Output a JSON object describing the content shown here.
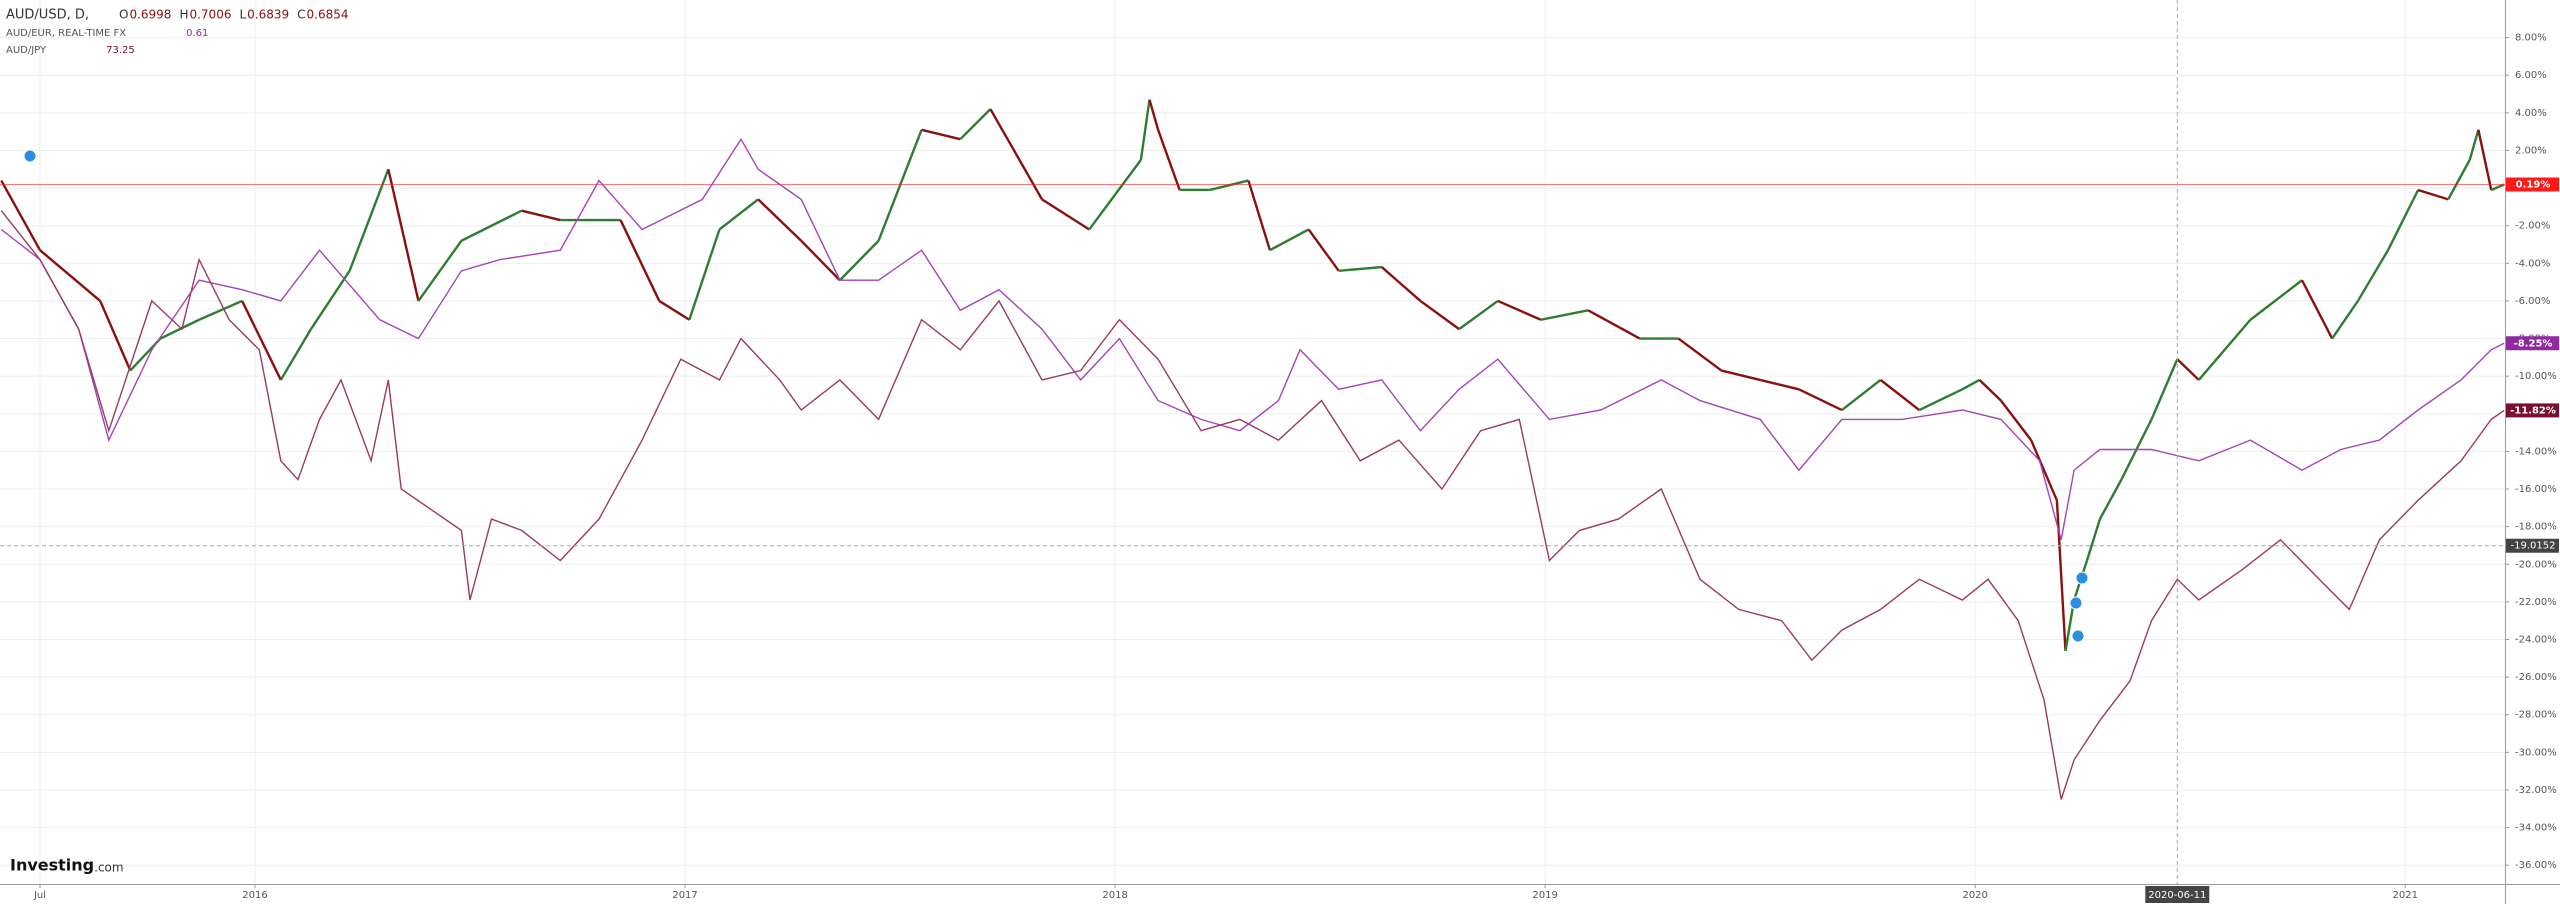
{
  "chart_data": {
    "type": "line",
    "header": {
      "symbol": "AUD/USD, D,",
      "ohlc": [
        {
          "label": "O",
          "value": 0.6998
        },
        {
          "label": "H",
          "value": 0.7006
        },
        {
          "label": "L",
          "value": 0.6839
        },
        {
          "label": "C",
          "value": 0.6854
        }
      ]
    },
    "logo": [
      "Investing",
      ".com"
    ],
    "xlim": [
      2015.407,
      2021.232
    ],
    "xticks": [
      {
        "value": 2015.5,
        "label": "Jul"
      },
      2016,
      2017,
      2018,
      2019,
      2020,
      2021
    ],
    "ylim": [
      -37,
      10
    ],
    "yticks": [
      {
        "value": 8,
        "label": "8.00%"
      },
      {
        "value": 6,
        "label": "6.00%"
      },
      {
        "value": 4,
        "label": "4.00%"
      },
      {
        "value": 2,
        "label": "2.00%"
      },
      {
        "value": 0,
        "label": "0.00%"
      },
      {
        "value": -2,
        "label": "-2.00%"
      },
      {
        "value": -4,
        "label": "-4.00%"
      },
      {
        "value": -6,
        "label": "-6.00%"
      },
      {
        "value": -8,
        "label": "-8.00%"
      },
      {
        "value": -10,
        "label": "-10.00%"
      },
      {
        "value": -12,
        "label": "-12.00%"
      },
      {
        "value": -14,
        "label": "-14.00%"
      },
      {
        "value": -16,
        "label": "-16.00%"
      },
      {
        "value": -18,
        "label": "-18.00%"
      },
      {
        "value": -20,
        "label": "-20.00%"
      },
      {
        "value": -22,
        "label": "-22.00%"
      },
      {
        "value": -24,
        "label": "-24.00%"
      },
      {
        "value": -26,
        "label": "-26.00%"
      },
      {
        "value": -28,
        "label": "-28.00%"
      },
      {
        "value": -30,
        "label": "-30.00%"
      },
      {
        "value": -32,
        "label": "-32.00%"
      },
      {
        "value": -34,
        "label": "-34.00%"
      },
      {
        "value": -36,
        "label": "-36.00%"
      }
    ],
    "grid": true,
    "crosshair": {
      "x": {
        "value": 2020.47,
        "label": "2020-06-11"
      },
      "y": -19.0152
    },
    "series": [
      {
        "name": "AUD/USD",
        "style": "candles",
        "up_color": "#2e7d32",
        "down_color": "#8b1010",
        "end_color": "#ff1a1a",
        "end_label": "0.19%",
        "x": [
          2015.41,
          2015.5,
          2015.64,
          2015.71,
          2015.78,
          2015.87,
          2015.97,
          2016.06,
          2016.13,
          2016.22,
          2016.31,
          2016.38,
          2016.48,
          2016.62,
          2016.71,
          2016.85,
          2016.94,
          2017.01,
          2017.08,
          2017.17,
          2017.27,
          2017.36,
          2017.45,
          2017.55,
          2017.64,
          2017.71,
          2017.83,
          2017.94,
          2018.06,
          2018.08,
          2018.1,
          2018.15,
          2018.22,
          2018.31,
          2018.36,
          2018.45,
          2018.52,
          2018.62,
          2018.71,
          2018.8,
          2018.89,
          2018.99,
          2019.1,
          2019.22,
          2019.31,
          2019.41,
          2019.5,
          2019.59,
          2019.69,
          2019.78,
          2019.87,
          2019.97,
          2020.01,
          2020.06,
          2020.13,
          2020.19,
          2020.21,
          2020.23,
          2020.26,
          2020.29,
          2020.34,
          2020.41,
          2020.47,
          2020.52,
          2020.64,
          2020.76,
          2020.83,
          2020.89,
          2020.96,
          2021.03,
          2021.1,
          2021.15,
          2021.17,
          2021.2,
          2021.23
        ],
        "values": [
          0.4,
          -3.3,
          -6,
          -9.7,
          -8,
          -7,
          -6,
          -10.2,
          -7.5,
          -4.4,
          1,
          -6,
          -2.8,
          -1.2,
          -1.7,
          -1.7,
          -6,
          -7,
          -2.2,
          -0.6,
          -2.8,
          -4.9,
          -2.8,
          3.1,
          2.6,
          4.2,
          -0.6,
          -2.2,
          1.5,
          4.7,
          3.1,
          -0.1,
          -0.1,
          0.4,
          -3.3,
          -2.2,
          -4.4,
          -4.2,
          -6,
          -7.5,
          -6,
          -7,
          -6.5,
          -8,
          -8,
          -9.7,
          -10.2,
          -10.7,
          -11.8,
          -10.2,
          -11.8,
          -10.7,
          -10.2,
          -11.3,
          -13.4,
          -16.6,
          -24.6,
          -21.9,
          -19.8,
          -17.6,
          -15.5,
          -12.3,
          -9.1,
          -10.2,
          -7,
          -4.9,
          -8,
          -6,
          -3.3,
          -0.1,
          -0.6,
          1.5,
          3.1,
          -0.1,
          0.19
        ]
      },
      {
        "name": "AUD/EUR, REAL-TIME FX",
        "legend_value": 0.61,
        "color": "#a544b8",
        "end_color": "#8e2a9e",
        "end_label": "-8.25%",
        "x": [
          2015.41,
          2015.5,
          2015.59,
          2015.66,
          2015.76,
          2015.87,
          2015.97,
          2016.06,
          2016.15,
          2016.29,
          2016.38,
          2016.48,
          2016.57,
          2016.71,
          2016.8,
          2016.9,
          2017.04,
          2017.13,
          2017.17,
          2017.27,
          2017.36,
          2017.45,
          2017.55,
          2017.64,
          2017.73,
          2017.83,
          2017.92,
          2018.01,
          2018.1,
          2018.2,
          2018.29,
          2018.38,
          2018.43,
          2018.52,
          2018.62,
          2018.71,
          2018.8,
          2018.89,
          2019.01,
          2019.13,
          2019.27,
          2019.36,
          2019.5,
          2019.59,
          2019.69,
          2019.83,
          2019.97,
          2020.06,
          2020.15,
          2020.2,
          2020.23,
          2020.29,
          2020.41,
          2020.52,
          2020.64,
          2020.76,
          2020.85,
          2020.94,
          2021.03,
          2021.13,
          2021.2,
          2021.23
        ],
        "values": [
          -2.2,
          -3.8,
          -7.5,
          -13.4,
          -8.6,
          -4.9,
          -5.4,
          -6,
          -3.3,
          -7,
          -8,
          -4.4,
          -3.8,
          -3.3,
          0.4,
          -2.2,
          -0.6,
          2.6,
          1,
          -0.6,
          -4.9,
          -4.9,
          -3.3,
          -6.5,
          -5.4,
          -7.5,
          -10.2,
          -8,
          -11.3,
          -12.3,
          -12.9,
          -11.3,
          -8.6,
          -10.7,
          -10.2,
          -12.9,
          -10.7,
          -9.1,
          -12.3,
          -11.8,
          -10.2,
          -11.3,
          -12.3,
          -15,
          -12.3,
          -12.3,
          -11.8,
          -12.3,
          -14.5,
          -18.7,
          -15,
          -13.9,
          -13.9,
          -14.5,
          -13.4,
          -15,
          -13.9,
          -13.4,
          -11.8,
          -10.2,
          -8.6,
          -8.25
        ]
      },
      {
        "name": "AUD/JPY",
        "legend_value": 73.25,
        "color": "#9a3a63",
        "end_color": "#7a0f30",
        "end_label": "-11.82%",
        "x": [
          2015.41,
          2015.5,
          2015.59,
          2015.66,
          2015.76,
          2015.83,
          2015.87,
          2015.94,
          2016.01,
          2016.06,
          2016.1,
          2016.15,
          2016.2,
          2016.27,
          2016.31,
          2016.34,
          2016.41,
          2016.48,
          2016.5,
          2016.55,
          2016.62,
          2016.71,
          2016.8,
          2016.9,
          2016.99,
          2017.08,
          2017.13,
          2017.22,
          2017.27,
          2017.36,
          2017.45,
          2017.55,
          2017.64,
          2017.73,
          2017.83,
          2017.92,
          2018.01,
          2018.1,
          2018.2,
          2018.29,
          2018.38,
          2018.48,
          2018.57,
          2018.66,
          2018.76,
          2018.85,
          2018.94,
          2019.01,
          2019.08,
          2019.17,
          2019.27,
          2019.36,
          2019.45,
          2019.55,
          2019.62,
          2019.69,
          2019.78,
          2019.87,
          2019.97,
          2020.03,
          2020.1,
          2020.16,
          2020.2,
          2020.23,
          2020.29,
          2020.36,
          2020.41,
          2020.47,
          2020.52,
          2020.62,
          2020.71,
          2020.8,
          2020.87,
          2020.94,
          2021.03,
          2021.13,
          2021.2,
          2021.23
        ],
        "values": [
          -1.2,
          -3.8,
          -7.5,
          -12.9,
          -6,
          -7.5,
          -3.8,
          -7,
          -8.6,
          -14.5,
          -15.5,
          -12.3,
          -10.2,
          -14.5,
          -10.2,
          -16,
          -17.1,
          -18.2,
          -21.9,
          -17.6,
          -18.2,
          -19.8,
          -17.6,
          -13.4,
          -9.1,
          -10.2,
          -8,
          -10.2,
          -11.8,
          -10.2,
          -12.3,
          -7,
          -8.6,
          -6,
          -10.2,
          -9.7,
          -7,
          -9.1,
          -12.9,
          -12.3,
          -13.4,
          -11.3,
          -14.5,
          -13.4,
          -16,
          -12.9,
          -12.3,
          -19.8,
          -18.2,
          -17.6,
          -16,
          -20.8,
          -22.4,
          -23,
          -25.1,
          -23.5,
          -22.4,
          -20.8,
          -21.9,
          -20.8,
          -23,
          -27.2,
          -32.5,
          -30.4,
          -28.3,
          -26.2,
          -23,
          -20.8,
          -21.9,
          -20.3,
          -18.7,
          -20.8,
          -22.4,
          -18.7,
          -16.6,
          -14.5,
          -12.3,
          -11.82
        ]
      }
    ]
  }
}
